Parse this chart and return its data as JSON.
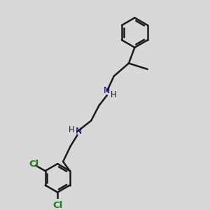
{
  "bg_color": "#d8d8d8",
  "bond_color": "#1a1a1a",
  "bond_width": 1.8,
  "N_color": "#0000bb",
  "Cl_color": "#1a7a1a",
  "font_size": 8.5,
  "figsize": [
    3.0,
    3.0
  ],
  "dpi": 100,
  "xlim": [
    0,
    10
  ],
  "ylim": [
    0,
    10
  ]
}
